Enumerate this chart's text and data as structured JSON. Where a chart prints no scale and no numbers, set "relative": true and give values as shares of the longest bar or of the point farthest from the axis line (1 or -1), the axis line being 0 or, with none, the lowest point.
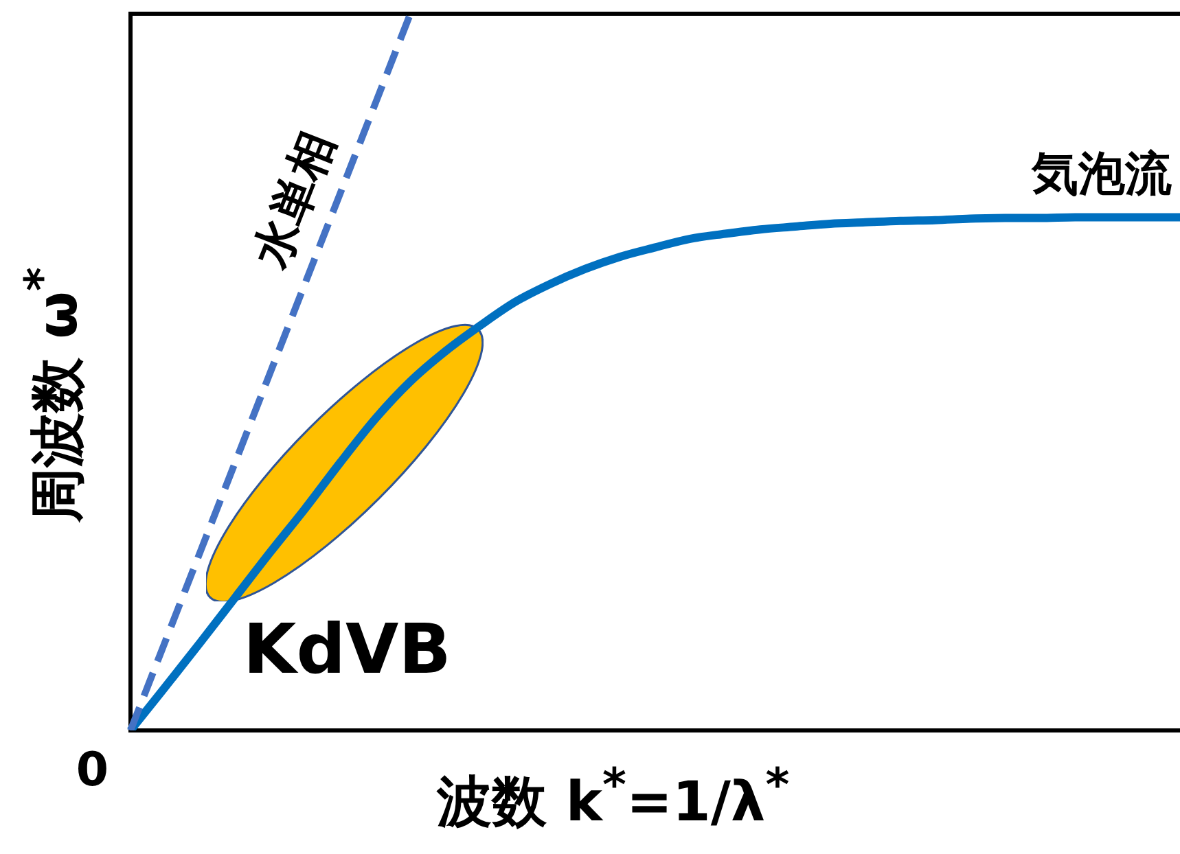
{
  "chart_data": {
    "type": "line",
    "relative": true,
    "xlabel": "波数 k$^{*}$=1/λ$^{*}$",
    "ylabel": "周波数 ω$^{*}$",
    "marker": "none",
    "categories": [
      null,
      null,
      null,
      null,
      null,
      null,
      null,
      null,
      null,
      null,
      null,
      null,
      null,
      null,
      null,
      null,
      null,
      null,
      null,
      null,
      null,
      null,
      null,
      null,
      null,
      null,
      null,
      null,
      null,
      null,
      null
    ],
    "series": [
      {
        "name": "水単相",
        "color": "#4472c4",
        "line_style": "dashed",
        "values": [
          0,
          0.125,
          0.25,
          0.375,
          0.5,
          0.625,
          0.75,
          0.875,
          1,
          null,
          null,
          null,
          null,
          null,
          null,
          null,
          null,
          null,
          null,
          null,
          null,
          null,
          null,
          null,
          null,
          null,
          null,
          null,
          null,
          null,
          null
        ]
      },
      {
        "name": "気泡流",
        "color": "#0070c0",
        "line_style": "solid",
        "values": [
          0,
          0.061,
          0.123,
          0.186,
          0.249,
          0.31,
          0.374,
          0.435,
          0.487,
          0.529,
          0.565,
          0.598,
          0.623,
          0.644,
          0.661,
          0.674,
          0.686,
          0.693,
          0.699,
          0.703,
          0.707,
          0.709,
          0.711,
          0.712,
          0.714,
          0.715,
          0.715,
          0.716,
          0.716,
          0.716,
          0.716
        ]
      }
    ],
    "annotations": [
      "0",
      "KdVB"
    ]
  }
}
